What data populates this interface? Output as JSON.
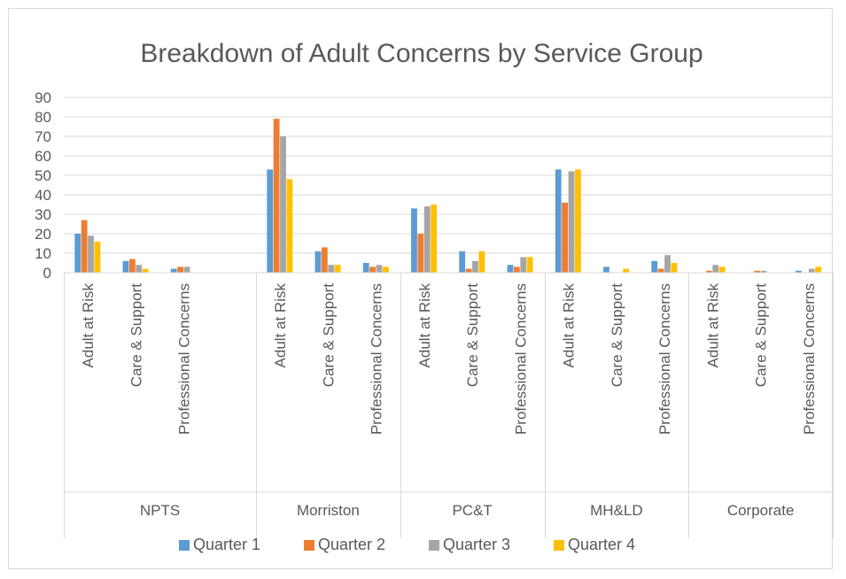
{
  "chart_data": {
    "type": "bar",
    "title": "Breakdown of Adult Concerns by Service Group",
    "xlabel": "",
    "ylabel": "",
    "ylim": [
      0,
      90
    ],
    "yticks": [
      "0",
      "10",
      "20",
      "30",
      "40",
      "50",
      "60",
      "70",
      "80",
      "90"
    ],
    "grid": true,
    "legend_position": "bottom",
    "groups": [
      {
        "name": "NPTS",
        "categories": [
          "Adult at Risk",
          "Care & Support",
          "Professional Concerns",
          ""
        ]
      },
      {
        "name": "Morriston",
        "categories": [
          "Adult at Risk",
          "Care & Support",
          "Professional Concerns"
        ]
      },
      {
        "name": "PC&T",
        "categories": [
          "Adult at Risk",
          "Care & Support",
          "Professional Concerns"
        ]
      },
      {
        "name": "MH&LD",
        "categories": [
          "Adult at Risk",
          "Care & Support",
          "Professional Concerns"
        ]
      },
      {
        "name": "Corporate",
        "categories": [
          "Adult at Risk",
          "Care & Support",
          "Professional Concerns"
        ]
      }
    ],
    "series": [
      {
        "name": "Quarter 1",
        "color": "#5b9bd5",
        "values": [
          20,
          6,
          2,
          null,
          53,
          11,
          5,
          33,
          11,
          4,
          53,
          3,
          6,
          0,
          0,
          1
        ]
      },
      {
        "name": "Quarter 2",
        "color": "#ed7d31",
        "values": [
          27,
          7,
          3,
          null,
          79,
          13,
          3,
          20,
          2,
          3,
          36,
          0,
          2,
          1,
          1,
          0
        ]
      },
      {
        "name": "Quarter 3",
        "color": "#a5a5a5",
        "values": [
          19,
          4,
          3,
          null,
          70,
          4,
          4,
          34,
          6,
          8,
          52,
          0,
          9,
          4,
          1,
          2
        ]
      },
      {
        "name": "Quarter 4",
        "color": "#ffc000",
        "values": [
          16,
          2,
          0,
          null,
          48,
          4,
          3,
          35,
          11,
          8,
          53,
          2,
          5,
          3,
          0,
          3
        ]
      }
    ]
  }
}
